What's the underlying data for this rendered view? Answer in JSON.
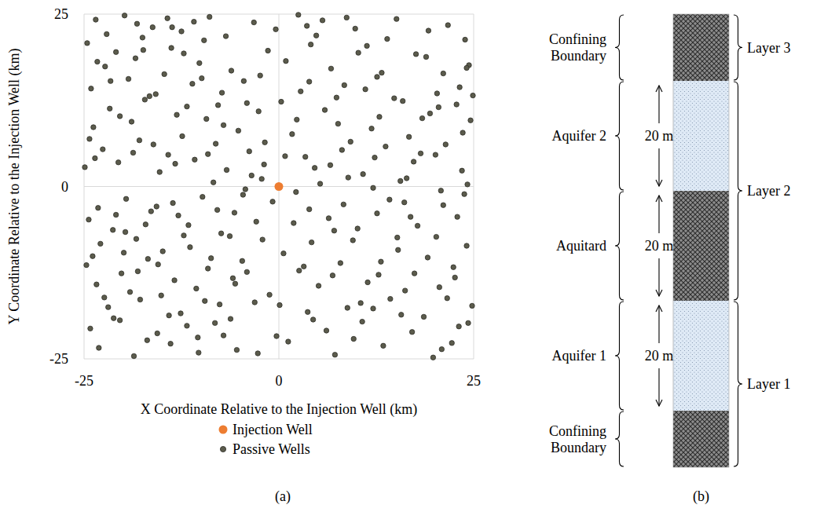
{
  "chart_data": {
    "type": "scatter",
    "xlabel": "X Coordinate Relative to the Injection Well (km)",
    "ylabel": "Y Coordinate Relative to the Injection Well (km)",
    "xlim": [
      -25,
      25
    ],
    "ylim": [
      -25,
      25
    ],
    "xticks": [
      -25,
      0,
      25
    ],
    "yticks": [
      -25,
      0,
      25
    ],
    "grid": true,
    "legend": "bottom",
    "annotations": [
      "(a)"
    ],
    "series": [
      {
        "name": "Injection Well",
        "color": "#ed7d31",
        "marker": "circle",
        "x": [
          0
        ],
        "values": [
          0
        ]
      },
      {
        "name": "Passive Wells",
        "color": "#5b5b4c",
        "marker": "circle",
        "x": [
          -23.5,
          -19.8,
          -16.2,
          -12.5,
          -8.9,
          -3.2,
          2.5,
          9.8,
          15.1,
          21.7,
          -24.6,
          -20.9,
          -17.5,
          -13.8,
          -9.6,
          -1.4,
          4.8,
          11.3,
          17.6,
          23.9,
          -22.3,
          -18.4,
          -14.7,
          -10.2,
          -6.1,
          0.9,
          6.7,
          13.2,
          18.9,
          24.4,
          -24.1,
          -19.3,
          -15.8,
          -11.1,
          -4.5,
          2.8,
          8.4,
          12.6,
          20.3,
          23.2,
          -21.7,
          -17.2,
          -13.1,
          -7.8,
          -2.6,
          0.3,
          5.9,
          14.8,
          19.4,
          22.8,
          -23.8,
          -18.9,
          -12.4,
          -9.3,
          -5.2,
          1.7,
          7.6,
          11.9,
          16.7,
          24.6,
          -22.6,
          -17.9,
          -14.2,
          -8.1,
          -3.8,
          3.4,
          9.2,
          13.7,
          18.2,
          21.4,
          -24.9,
          -20.6,
          -15.3,
          -10.8,
          -6.7,
          -1.9,
          4.6,
          10.8,
          17.3,
          23.5,
          -8.4,
          -4.3,
          -2.2,
          2.2,
          5.3,
          8.9,
          12.1,
          15.6,
          20.8,
          24.2,
          -23.2,
          -19.6,
          -16.4,
          -13.6,
          -9.8,
          -5.7,
          -0.8,
          3.9,
          14.2,
          21.1,
          -24.4,
          -21.3,
          -17.1,
          -12.9,
          -7.4,
          -2.9,
          6.4,
          10.1,
          17.8,
          22.9,
          -22.9,
          -18.3,
          -14.9,
          -11.4,
          -6.3,
          0.6,
          4.2,
          9.5,
          15.3,
          24.1,
          -24.7,
          -20.2,
          -16.8,
          -9.1,
          -4.7,
          2.6,
          7.9,
          12.8,
          19.1,
          22.4,
          -23.4,
          -19.1,
          -13.4,
          -10.6,
          -5.9,
          -1.2,
          5.1,
          11.4,
          16.2,
          20.6,
          -21.9,
          -17.8,
          -14.1,
          -7.6,
          -3.1,
          3.7,
          8.8,
          14.3,
          18.6,
          24.8,
          -24.2,
          -20.4,
          -15.6,
          -11.8,
          -8.2,
          -0.3,
          6.1,
          10.7,
          17.1,
          23.1,
          -23.1,
          -18.6,
          -13.9,
          -10.3,
          -5.4,
          1.2,
          7.2,
          13.4,
          19.8,
          22.2,
          -22.1,
          -18.2,
          -14.3,
          -10.9,
          -6.8,
          -0.4,
          3.6,
          8.7,
          13.9,
          19.2,
          -23.3,
          -16.6,
          -12.2,
          -7.3,
          -2.4,
          3.9,
          10.2,
          15.9,
          21.1,
          24.9,
          -20.4,
          -16.1,
          -11.8,
          -7.1,
          -4.1,
          2.3,
          8.1,
          12.9,
          20.5,
          23.6,
          -23.6,
          -18.7,
          -13.3,
          -9.1,
          -3.5,
          0.8,
          6.6,
          12.3,
          16.4,
          20.1,
          -20.9,
          -15.7,
          -11.6,
          -7.9,
          -4.6,
          1.9,
          8.3,
          12.6,
          16.9,
          23.8,
          -23.9,
          -19.7,
          -15.5,
          -12.2,
          -8.7,
          -2.1,
          3.2,
          7.1,
          13.1,
          20.2,
          -22.4,
          -18.1,
          -15.1,
          -9.5,
          -4.1,
          0.1,
          6.9,
          12.1,
          17.4,
          21.6,
          -21.2,
          -16.9,
          -12.6,
          -7.1,
          -2.7,
          4.4,
          9.6,
          15.7,
          20.9,
          24.3,
          -24.3,
          -17.4,
          -9.9,
          -1.8,
          5.6,
          11.1,
          18.4,
          24.1,
          -6.2,
          15.2,
          -19.9,
          -13.7,
          -5.6,
          4.1,
          10.5,
          16.1,
          22.6,
          -21.6,
          -10.4,
          7.4
        ],
        "values": [
          24.2,
          24.8,
          23.1,
          22.5,
          24.6,
          23.8,
          24.9,
          22.9,
          24.3,
          23.4,
          20.8,
          19.5,
          21.6,
          20.1,
          21.2,
          19.7,
          21.9,
          20.4,
          19.2,
          21.3,
          17.4,
          18.6,
          16.3,
          17.9,
          16.8,
          18.2,
          17.1,
          16.5,
          18.8,
          17.6,
          14.2,
          15.6,
          13.4,
          14.9,
          15.3,
          13.8,
          14.7,
          15.9,
          13.5,
          14.4,
          11.3,
          12.6,
          10.4,
          11.8,
          10.9,
          12.3,
          11.1,
          12.8,
          10.6,
          11.9,
          8.6,
          9.4,
          7.3,
          9.8,
          8.1,
          7.6,
          9.1,
          8.4,
          7.2,
          9.6,
          5.4,
          6.7,
          4.6,
          6.2,
          5.1,
          4.3,
          6.5,
          5.8,
          4.8,
          6.1,
          2.8,
          3.5,
          2.1,
          3.9,
          2.4,
          3.2,
          2.7,
          1.8,
          3.6,
          2.3,
          0.6,
          -0.4,
          1.1,
          -0.8,
          0.4,
          1.3,
          -0.2,
          0.8,
          -0.6,
          0.3,
          -3.1,
          -1.8,
          -3.6,
          -2.4,
          -1.5,
          -3.8,
          -2.2,
          -3.3,
          -1.9,
          -2.7,
          -4.8,
          -6.3,
          -5.5,
          -4.2,
          -6.8,
          -5.1,
          -4.6,
          -6.1,
          -5.7,
          -4.4,
          -8.3,
          -7.6,
          -9.4,
          -8.8,
          -7.2,
          -9.7,
          -8.1,
          -7.8,
          -9.2,
          -8.6,
          -11.4,
          -12.6,
          -10.5,
          -11.9,
          -10.8,
          -12.2,
          -11.1,
          -12.8,
          -10.3,
          -11.7,
          -14.2,
          -15.3,
          -13.6,
          -14.8,
          -13.3,
          -15.7,
          -14.4,
          -13.9,
          -15.1,
          -14.6,
          -17.5,
          -16.4,
          -18.7,
          -17.1,
          -16.8,
          -18.2,
          -17.6,
          -16.3,
          -18.9,
          -17.3,
          -20.6,
          -19.4,
          -21.3,
          -20.2,
          -19.8,
          -21.7,
          -20.9,
          -19.6,
          -21.1,
          -20.3,
          -23.4,
          -24.6,
          -22.8,
          -24.1,
          -23.7,
          -22.5,
          -24.4,
          -23.1,
          -24.8,
          -22.7,
          22.1,
          23.6,
          24.4,
          23.9,
          21.8,
          22.8,
          23.3,
          24.5,
          21.4,
          22.6,
          18.1,
          13.1,
          19.3,
          13.6,
          16.1,
          15.2,
          19.4,
          12.4,
          16.4,
          13.2,
          10.2,
          6.1,
          11.6,
          8.9,
          12.1,
          9.7,
          5.3,
          10.1,
          11.5,
          7.8,
          4.1,
          4.9,
          3.3,
          4.7,
          1.6,
          4.4,
          3.1,
          4.2,
          1.2,
          4.6,
          -4.1,
          -2.9,
          -5.6,
          -3.4,
          -1.2,
          -5.3,
          -2.6,
          -3.9,
          -4.4,
          -1.1,
          -10.1,
          -6.6,
          -11.3,
          -7.1,
          -10.4,
          -7.7,
          -11.6,
          -6.4,
          -10.9,
          -7.3,
          -16.1,
          -12.3,
          -15.8,
          -16.6,
          -12.4,
          -17.2,
          -12.9,
          -17.7,
          -12.6,
          -16.2,
          -19.1,
          -22.3,
          -18.4,
          -21.6,
          -24.2,
          -19.3,
          -22.1,
          -18.6,
          -23.6,
          -19.8,
          6.9,
          19.8,
          15.7,
          6.4,
          24.1,
          14.1,
          9.9,
          17.2,
          -19.2,
          -7.4,
          -9.6,
          23.1,
          -14.1,
          20.6,
          -16.9,
          -2.3,
          -13.2,
          15.3,
          -21.9,
          12.9
        ]
      }
    ]
  },
  "diagram": {
    "units": [
      {
        "label": "Confining Boundary"
      },
      {
        "label": "Aquifer 2",
        "thickness": "20 m"
      },
      {
        "label": "Aquitard",
        "thickness": "20 m"
      },
      {
        "label": "Aquifer 1",
        "thickness": "20 m"
      },
      {
        "label": "Confining Boundary"
      }
    ],
    "layers": [
      {
        "label": "Layer 3"
      },
      {
        "label": "Layer 2"
      },
      {
        "label": "Layer 1"
      }
    ],
    "caption": "(b)"
  }
}
